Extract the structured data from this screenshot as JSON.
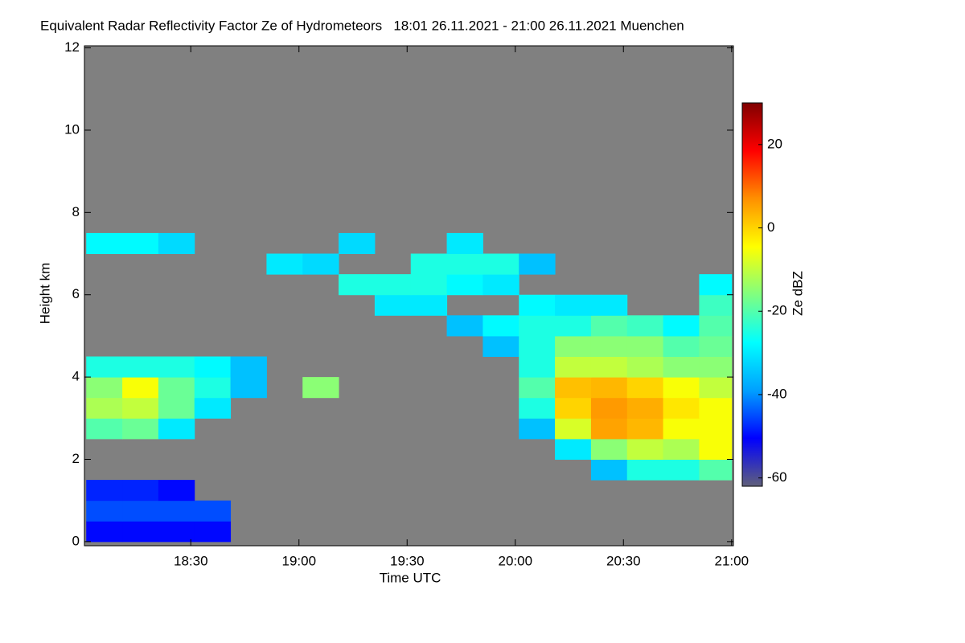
{
  "chart_data": {
    "type": "heatmap",
    "title": "Equivalent Radar Reflectivity Factor Ze of Hydrometeors   18:01 26.11.2021 - 21:00 26.11.2021 Muenchen",
    "xlabel": "Time UTC",
    "ylabel": "Height km",
    "colorbar_label": "Ze dBZ",
    "xlim": [
      1080.5,
      1260.5
    ],
    "xticks": [
      {
        "value": 1110,
        "label": "18:30"
      },
      {
        "value": 1140,
        "label": "19:00"
      },
      {
        "value": 1170,
        "label": "19:30"
      },
      {
        "value": 1200,
        "label": "20:00"
      },
      {
        "value": 1230,
        "label": "20:30"
      },
      {
        "value": 1260,
        "label": "21:00"
      }
    ],
    "ylim": [
      -0.1,
      12.05
    ],
    "yticks": [
      0,
      2,
      4,
      6,
      8,
      10,
      12
    ],
    "clim": [
      -62,
      30
    ],
    "cticks": [
      -60,
      -40,
      -20,
      0,
      20
    ],
    "colors": [
      "#60607a",
      "#0000ff",
      "#00a0ff",
      "#00ffff",
      "#80ff80",
      "#ffff00",
      "#ff9000",
      "#ff0000",
      "#800000"
    ],
    "background": "#808080",
    "x_edges": [
      1081,
      1091,
      1101,
      1111,
      1121,
      1131,
      1141,
      1151,
      1161,
      1171,
      1181,
      1191,
      1201,
      1211,
      1221,
      1231,
      1241,
      1251,
      1260
    ],
    "y_edges": [
      0,
      0.5,
      1,
      1.5,
      2,
      2.5,
      3,
      3.5,
      4,
      4.5,
      5,
      5.5,
      6,
      6.5,
      7,
      7.5,
      8,
      8.5,
      9,
      9.5,
      10,
      10.5,
      11,
      11.5,
      12
    ],
    "z": [
      [
        -50,
        -50,
        -50,
        -50,
        null,
        null,
        null,
        null,
        null,
        null,
        null,
        null,
        null,
        null,
        null,
        null,
        null,
        null
      ],
      [
        -45,
        -45,
        -45,
        -45,
        null,
        null,
        null,
        null,
        null,
        null,
        null,
        null,
        null,
        null,
        null,
        null,
        null,
        null
      ],
      [
        -48,
        -48,
        -50,
        null,
        null,
        null,
        null,
        null,
        null,
        null,
        null,
        null,
        null,
        null,
        null,
        null,
        null,
        null
      ],
      [
        null,
        null,
        null,
        null,
        null,
        null,
        null,
        null,
        null,
        null,
        null,
        null,
        null,
        null,
        -35,
        -25,
        -25,
        -20
      ],
      [
        null,
        null,
        null,
        null,
        null,
        null,
        null,
        null,
        null,
        null,
        null,
        null,
        null,
        -30,
        -15,
        -10,
        -12,
        -5
      ],
      [
        -20,
        -18,
        -30,
        null,
        null,
        null,
        null,
        null,
        null,
        null,
        null,
        null,
        -35,
        -8,
        5,
        3,
        -5,
        -5
      ],
      [
        -12,
        -10,
        -18,
        -30,
        null,
        null,
        null,
        null,
        null,
        null,
        null,
        null,
        -25,
        0,
        6,
        4,
        -2,
        -5
      ],
      [
        -15,
        -5,
        -18,
        -25,
        -35,
        null,
        -15,
        null,
        null,
        null,
        null,
        null,
        -20,
        2,
        3,
        0,
        -5,
        -10
      ],
      [
        -25,
        -25,
        -25,
        -28,
        -35,
        null,
        null,
        null,
        null,
        null,
        null,
        null,
        -25,
        -10,
        -10,
        -12,
        -15,
        -15
      ],
      [
        null,
        null,
        null,
        null,
        null,
        null,
        null,
        null,
        null,
        null,
        null,
        -35,
        -25,
        -15,
        -15,
        -15,
        -20,
        -18
      ],
      [
        null,
        null,
        null,
        null,
        null,
        null,
        null,
        null,
        null,
        null,
        -35,
        -28,
        -25,
        -25,
        -20,
        -22,
        -28,
        -20
      ],
      [
        null,
        null,
        null,
        null,
        null,
        null,
        null,
        null,
        -30,
        -30,
        null,
        null,
        -28,
        -30,
        -30,
        null,
        null,
        -22
      ],
      [
        null,
        null,
        null,
        null,
        null,
        null,
        null,
        -25,
        -25,
        -25,
        -28,
        -30,
        null,
        null,
        null,
        null,
        null,
        -28
      ],
      [
        null,
        null,
        null,
        null,
        null,
        -30,
        -32,
        null,
        null,
        -25,
        -25,
        -25,
        -35,
        null,
        null,
        null,
        null,
        null
      ],
      [
        -28,
        -28,
        -32,
        null,
        null,
        null,
        null,
        -32,
        null,
        null,
        -30,
        null,
        null,
        null,
        null,
        null,
        null,
        null
      ],
      [
        null,
        null,
        null,
        null,
        null,
        null,
        null,
        null,
        null,
        null,
        null,
        null,
        null,
        null,
        null,
        null,
        null,
        null
      ],
      [
        null,
        null,
        null,
        null,
        null,
        null,
        null,
        null,
        null,
        null,
        null,
        null,
        null,
        null,
        null,
        null,
        null,
        null
      ],
      [
        null,
        null,
        null,
        null,
        null,
        null,
        null,
        null,
        null,
        null,
        null,
        null,
        null,
        null,
        null,
        null,
        null,
        null
      ],
      [
        null,
        null,
        null,
        null,
        null,
        null,
        null,
        null,
        null,
        null,
        null,
        null,
        null,
        null,
        null,
        null,
        null,
        null
      ],
      [
        null,
        null,
        null,
        null,
        null,
        null,
        null,
        null,
        null,
        null,
        null,
        null,
        null,
        null,
        null,
        null,
        null,
        null
      ],
      [
        null,
        null,
        null,
        null,
        null,
        null,
        null,
        null,
        null,
        null,
        null,
        null,
        null,
        null,
        null,
        null,
        null,
        null
      ],
      [
        null,
        null,
        null,
        null,
        null,
        null,
        null,
        null,
        null,
        null,
        null,
        null,
        null,
        null,
        null,
        null,
        null,
        null
      ],
      [
        null,
        null,
        null,
        null,
        null,
        null,
        null,
        null,
        null,
        null,
        null,
        null,
        null,
        null,
        null,
        null,
        null,
        null
      ],
      [
        null,
        null,
        null,
        null,
        null,
        null,
        null,
        null,
        null,
        null,
        null,
        null,
        null,
        null,
        null,
        null,
        null,
        null
      ]
    ]
  }
}
